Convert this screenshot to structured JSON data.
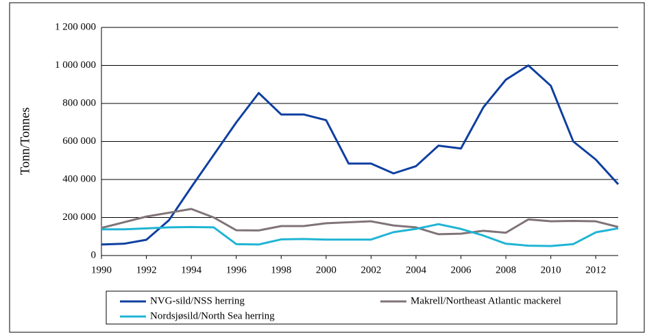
{
  "chart_data": {
    "type": "line",
    "y_label": "Tonn/Tonnes",
    "x": [
      1990,
      1991,
      1992,
      1993,
      1994,
      1995,
      1996,
      1997,
      1998,
      1999,
      2000,
      2001,
      2002,
      2003,
      2004,
      2005,
      2006,
      2007,
      2008,
      2009,
      2010,
      2011,
      2012,
      2013
    ],
    "xlim": [
      1990,
      2013
    ],
    "xticks": [
      1990,
      1992,
      1994,
      1996,
      1998,
      2000,
      2002,
      2004,
      2006,
      2008,
      2010,
      2012
    ],
    "ylim": [
      0,
      1200000
    ],
    "yticks": [
      0,
      {
        "value": 200000,
        "label": "200 000"
      },
      {
        "value": 400000,
        "label": "400 000"
      },
      {
        "value": 600000,
        "label": "600 000"
      },
      {
        "value": 800000,
        "label": "800 000"
      },
      {
        "value": 1000000,
        "label": "1 000 000"
      },
      {
        "value": 1200000,
        "label": "1 200 000"
      }
    ],
    "grid": true,
    "legend": "bottom",
    "series": [
      {
        "name": "NVG-sild/NSS herring",
        "color": "#0e3fa0",
        "values": [
          58000,
          62000,
          83000,
          185000,
          360000,
          530000,
          700000,
          855000,
          742000,
          742000,
          712000,
          484000,
          484000,
          432000,
          470000,
          578000,
          563000,
          780000,
          925000,
          1000000,
          893000,
          600000,
          505000,
          375000
        ]
      },
      {
        "name": "Makrell/Northeast Atlantic mackerel",
        "color": "#7f7378",
        "values": [
          145000,
          175000,
          205000,
          225000,
          245000,
          200000,
          133000,
          132000,
          155000,
          155000,
          170000,
          175000,
          180000,
          158000,
          148000,
          112000,
          115000,
          130000,
          120000,
          190000,
          180000,
          182000,
          180000,
          150000
        ]
      },
      {
        "name": "Nordsjøsild/North Sea herring",
        "color": "#1fb4d4",
        "values": [
          138000,
          138000,
          143000,
          148000,
          150000,
          148000,
          60000,
          58000,
          85000,
          87000,
          84000,
          84000,
          84000,
          123000,
          140000,
          165000,
          140000,
          105000,
          62000,
          52000,
          50000,
          60000,
          122000,
          143000
        ]
      }
    ]
  }
}
